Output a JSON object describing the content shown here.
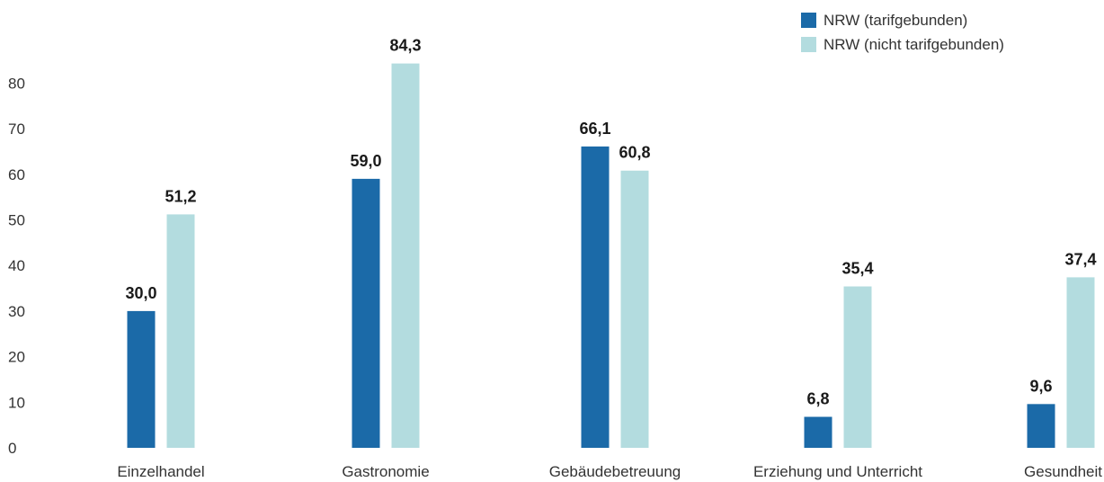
{
  "chart_data": {
    "type": "bar",
    "title": "",
    "xlabel": "",
    "ylabel": "",
    "ylim": [
      0,
      85
    ],
    "yticks": [
      0,
      10,
      20,
      30,
      40,
      50,
      60,
      70,
      80
    ],
    "categories": [
      "Einzelhandel",
      "Gastronomie",
      "Gebäudebetreuung",
      "Erziehung und Unterricht",
      "Gesundheit"
    ],
    "series": [
      {
        "name": "NRW (tarifgebunden)",
        "color": "#1b6aa8",
        "values": [
          30.0,
          59.0,
          66.1,
          6.8,
          9.6
        ],
        "labels": [
          "30,0",
          "59,0",
          "66,1",
          "6,8",
          "9,6"
        ]
      },
      {
        "name": "NRW (nicht tarifgebunden)",
        "color": "#b3dcdf",
        "values": [
          51.2,
          84.3,
          60.8,
          35.4,
          37.4
        ],
        "labels": [
          "51,2",
          "84,3",
          "60,8",
          "35,4",
          "37,4"
        ]
      }
    ],
    "grid": false,
    "legend": "top-right"
  }
}
